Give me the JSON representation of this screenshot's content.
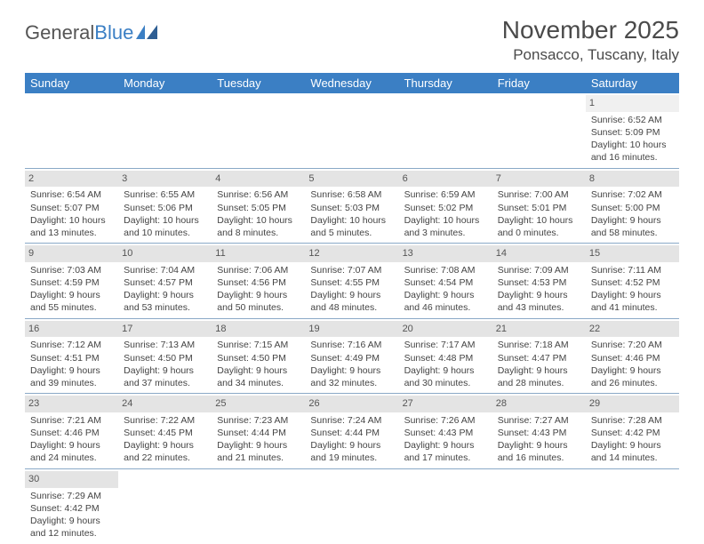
{
  "logo": {
    "text1": "General",
    "text2": "Blue"
  },
  "title": "November 2025",
  "location": "Ponsacco, Tuscany, Italy",
  "colors": {
    "header_bg": "#3b7fc4",
    "header_fg": "#ffffff",
    "daynum_bg": "#e4e4e4",
    "row_divider": "#8aa9c7",
    "text": "#444444"
  },
  "weekdays": [
    "Sunday",
    "Monday",
    "Tuesday",
    "Wednesday",
    "Thursday",
    "Friday",
    "Saturday"
  ],
  "weeks": [
    [
      null,
      null,
      null,
      null,
      null,
      null,
      {
        "n": "1",
        "sr": "Sunrise: 6:52 AM",
        "ss": "Sunset: 5:09 PM",
        "dl": "Daylight: 10 hours and 16 minutes."
      }
    ],
    [
      {
        "n": "2",
        "sr": "Sunrise: 6:54 AM",
        "ss": "Sunset: 5:07 PM",
        "dl": "Daylight: 10 hours and 13 minutes."
      },
      {
        "n": "3",
        "sr": "Sunrise: 6:55 AM",
        "ss": "Sunset: 5:06 PM",
        "dl": "Daylight: 10 hours and 10 minutes."
      },
      {
        "n": "4",
        "sr": "Sunrise: 6:56 AM",
        "ss": "Sunset: 5:05 PM",
        "dl": "Daylight: 10 hours and 8 minutes."
      },
      {
        "n": "5",
        "sr": "Sunrise: 6:58 AM",
        "ss": "Sunset: 5:03 PM",
        "dl": "Daylight: 10 hours and 5 minutes."
      },
      {
        "n": "6",
        "sr": "Sunrise: 6:59 AM",
        "ss": "Sunset: 5:02 PM",
        "dl": "Daylight: 10 hours and 3 minutes."
      },
      {
        "n": "7",
        "sr": "Sunrise: 7:00 AM",
        "ss": "Sunset: 5:01 PM",
        "dl": "Daylight: 10 hours and 0 minutes."
      },
      {
        "n": "8",
        "sr": "Sunrise: 7:02 AM",
        "ss": "Sunset: 5:00 PM",
        "dl": "Daylight: 9 hours and 58 minutes."
      }
    ],
    [
      {
        "n": "9",
        "sr": "Sunrise: 7:03 AM",
        "ss": "Sunset: 4:59 PM",
        "dl": "Daylight: 9 hours and 55 minutes."
      },
      {
        "n": "10",
        "sr": "Sunrise: 7:04 AM",
        "ss": "Sunset: 4:57 PM",
        "dl": "Daylight: 9 hours and 53 minutes."
      },
      {
        "n": "11",
        "sr": "Sunrise: 7:06 AM",
        "ss": "Sunset: 4:56 PM",
        "dl": "Daylight: 9 hours and 50 minutes."
      },
      {
        "n": "12",
        "sr": "Sunrise: 7:07 AM",
        "ss": "Sunset: 4:55 PM",
        "dl": "Daylight: 9 hours and 48 minutes."
      },
      {
        "n": "13",
        "sr": "Sunrise: 7:08 AM",
        "ss": "Sunset: 4:54 PM",
        "dl": "Daylight: 9 hours and 46 minutes."
      },
      {
        "n": "14",
        "sr": "Sunrise: 7:09 AM",
        "ss": "Sunset: 4:53 PM",
        "dl": "Daylight: 9 hours and 43 minutes."
      },
      {
        "n": "15",
        "sr": "Sunrise: 7:11 AM",
        "ss": "Sunset: 4:52 PM",
        "dl": "Daylight: 9 hours and 41 minutes."
      }
    ],
    [
      {
        "n": "16",
        "sr": "Sunrise: 7:12 AM",
        "ss": "Sunset: 4:51 PM",
        "dl": "Daylight: 9 hours and 39 minutes."
      },
      {
        "n": "17",
        "sr": "Sunrise: 7:13 AM",
        "ss": "Sunset: 4:50 PM",
        "dl": "Daylight: 9 hours and 37 minutes."
      },
      {
        "n": "18",
        "sr": "Sunrise: 7:15 AM",
        "ss": "Sunset: 4:50 PM",
        "dl": "Daylight: 9 hours and 34 minutes."
      },
      {
        "n": "19",
        "sr": "Sunrise: 7:16 AM",
        "ss": "Sunset: 4:49 PM",
        "dl": "Daylight: 9 hours and 32 minutes."
      },
      {
        "n": "20",
        "sr": "Sunrise: 7:17 AM",
        "ss": "Sunset: 4:48 PM",
        "dl": "Daylight: 9 hours and 30 minutes."
      },
      {
        "n": "21",
        "sr": "Sunrise: 7:18 AM",
        "ss": "Sunset: 4:47 PM",
        "dl": "Daylight: 9 hours and 28 minutes."
      },
      {
        "n": "22",
        "sr": "Sunrise: 7:20 AM",
        "ss": "Sunset: 4:46 PM",
        "dl": "Daylight: 9 hours and 26 minutes."
      }
    ],
    [
      {
        "n": "23",
        "sr": "Sunrise: 7:21 AM",
        "ss": "Sunset: 4:46 PM",
        "dl": "Daylight: 9 hours and 24 minutes."
      },
      {
        "n": "24",
        "sr": "Sunrise: 7:22 AM",
        "ss": "Sunset: 4:45 PM",
        "dl": "Daylight: 9 hours and 22 minutes."
      },
      {
        "n": "25",
        "sr": "Sunrise: 7:23 AM",
        "ss": "Sunset: 4:44 PM",
        "dl": "Daylight: 9 hours and 21 minutes."
      },
      {
        "n": "26",
        "sr": "Sunrise: 7:24 AM",
        "ss": "Sunset: 4:44 PM",
        "dl": "Daylight: 9 hours and 19 minutes."
      },
      {
        "n": "27",
        "sr": "Sunrise: 7:26 AM",
        "ss": "Sunset: 4:43 PM",
        "dl": "Daylight: 9 hours and 17 minutes."
      },
      {
        "n": "28",
        "sr": "Sunrise: 7:27 AM",
        "ss": "Sunset: 4:43 PM",
        "dl": "Daylight: 9 hours and 16 minutes."
      },
      {
        "n": "29",
        "sr": "Sunrise: 7:28 AM",
        "ss": "Sunset: 4:42 PM",
        "dl": "Daylight: 9 hours and 14 minutes."
      }
    ],
    [
      {
        "n": "30",
        "sr": "Sunrise: 7:29 AM",
        "ss": "Sunset: 4:42 PM",
        "dl": "Daylight: 9 hours and 12 minutes."
      },
      null,
      null,
      null,
      null,
      null,
      null
    ]
  ]
}
